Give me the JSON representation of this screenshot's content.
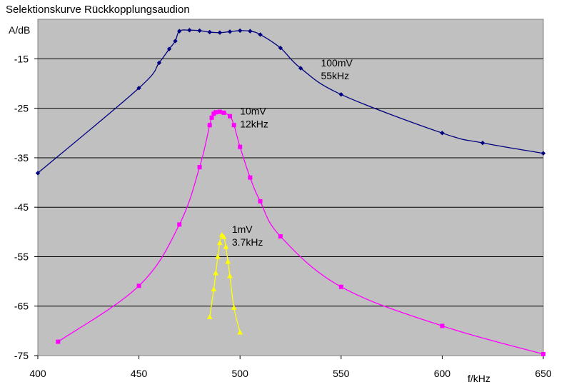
{
  "chart_data": {
    "type": "line",
    "title": "Selektionskurve Rückkopplungsaudion",
    "ylabel": "A/dB",
    "xlabel": "f/kHz",
    "xlim": [
      400,
      650
    ],
    "ylim": [
      -75,
      -7
    ],
    "x_ticks": [
      400,
      450,
      500,
      550,
      600,
      650
    ],
    "y_ticks": [
      -15,
      -25,
      -35,
      -45,
      -55,
      -65,
      -75
    ],
    "grid": "horizontal",
    "legend": "none",
    "series": [
      {
        "color": "#000080",
        "marker": "diamond",
        "labels": [
          "100mV",
          "55kHz"
        ],
        "label_at": [
          540,
          -16.5
        ],
        "points": [
          [
            400,
            -38.1
          ],
          [
            450,
            -20.9
          ],
          [
            460,
            -15.8
          ],
          [
            465,
            -13.0
          ],
          [
            468,
            -11.4
          ],
          [
            470,
            -9.4
          ],
          [
            475,
            -9.2
          ],
          [
            480,
            -9.3
          ],
          [
            485,
            -9.6
          ],
          [
            490,
            -9.7
          ],
          [
            495,
            -9.5
          ],
          [
            500,
            -9.3
          ],
          [
            505,
            -9.4
          ],
          [
            510,
            -10.1
          ],
          [
            520,
            -12.8
          ],
          [
            530,
            -16.9
          ],
          [
            550,
            -22.2
          ],
          [
            600,
            -30.0
          ],
          [
            620,
            -32.0
          ],
          [
            650,
            -34.1
          ]
        ]
      },
      {
        "color": "#ff00ff",
        "marker": "square",
        "labels": [
          "10mV",
          "12kHz"
        ],
        "label_at": [
          500,
          -26.3
        ],
        "points": [
          [
            410,
            -72.2
          ],
          [
            450,
            -60.9
          ],
          [
            470,
            -48.5
          ],
          [
            480,
            -36.9
          ],
          [
            485,
            -28.4
          ],
          [
            486,
            -26.9
          ],
          [
            487,
            -26.1
          ],
          [
            488,
            -25.8
          ],
          [
            490,
            -25.7
          ],
          [
            492,
            -25.9
          ],
          [
            495,
            -26.6
          ],
          [
            497,
            -28.4
          ],
          [
            500,
            -32.8
          ],
          [
            505,
            -39.0
          ],
          [
            510,
            -43.8
          ],
          [
            520,
            -50.9
          ],
          [
            550,
            -61.1
          ],
          [
            600,
            -69.0
          ],
          [
            650,
            -74.7
          ]
        ]
      },
      {
        "color": "#ffff00",
        "marker": "triangle",
        "labels": [
          "1mV",
          "3.7kHz"
        ],
        "label_at": [
          496,
          -50.2
        ],
        "points": [
          [
            485,
            -67.2
          ],
          [
            487,
            -61.6
          ],
          [
            488,
            -58.3
          ],
          [
            489,
            -55.0
          ],
          [
            490,
            -52.2
          ],
          [
            491,
            -50.6
          ],
          [
            492,
            -51.0
          ],
          [
            493,
            -53.0
          ],
          [
            494,
            -56.0
          ],
          [
            495,
            -58.9
          ],
          [
            497,
            -65.3
          ],
          [
            500,
            -70.3
          ]
        ]
      }
    ]
  }
}
